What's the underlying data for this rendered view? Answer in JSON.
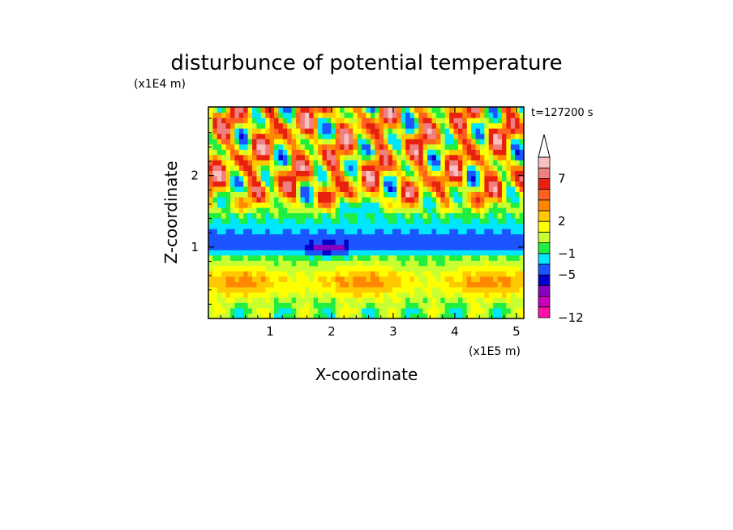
{
  "chart_data": {
    "type": "heatmap",
    "title": "disturbunce of potential temperature",
    "xlabel": "X-coordinate",
    "ylabel": "Z-coordinate",
    "x_unit": "(x1E5 m)",
    "y_unit": "(x1E4 m)",
    "time_label": "t=127200 s",
    "xlim": [
      0,
      5.12
    ],
    "ylim": [
      0,
      2.96
    ],
    "x_ticks": [
      1,
      2,
      3,
      4,
      5
    ],
    "y_ticks": [
      1,
      2
    ],
    "x_tick_labels": [
      "1",
      "2",
      "3",
      "4",
      "5"
    ],
    "y_tick_labels": [
      "1",
      "2"
    ],
    "colorbar": {
      "labels": [
        {
          "text": "7",
          "value": 7
        },
        {
          "text": "2",
          "value": 2
        },
        {
          "text": "−1",
          "value": -1
        },
        {
          "text": "−5",
          "value": -5
        },
        {
          "text": "−12",
          "value": -12
        }
      ],
      "colors": [
        "#ff10a8",
        "#c800b8",
        "#8a00c0",
        "#0000c8",
        "#1a55ff",
        "#00e6ff",
        "#20ee40",
        "#c8ff30",
        "#ffff00",
        "#ffc800",
        "#ff8800",
        "#ff6020",
        "#e82010",
        "#f08080",
        "#f8c0c0"
      ],
      "extend_top": true
    },
    "levels": [
      -12,
      -10,
      -8,
      -6,
      -5,
      -3,
      -1,
      0,
      1,
      2,
      3,
      4,
      5,
      7,
      9
    ],
    "grid_resolution": [
      72,
      40
    ],
    "field_description_pattern": "upper wave packets (z>1.5), cyan band near z~1.1, warm band near z~0.5"
  }
}
